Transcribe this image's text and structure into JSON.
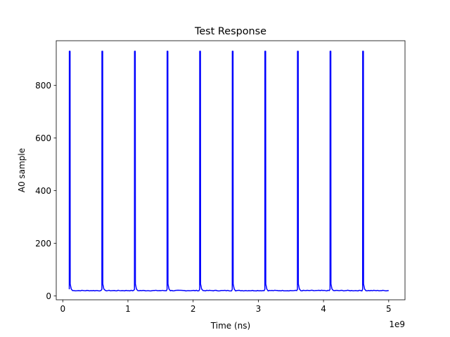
{
  "chart_data": {
    "type": "line",
    "title": "Test Response",
    "xlabel": "Time (ns)",
    "ylabel": "A0 sample",
    "x_offset_text": "1e9",
    "xlim": [
      -0.1,
      5.25
    ],
    "ylim": [
      -15,
      970
    ],
    "grid": false,
    "x_ticks": [
      0,
      1,
      2,
      3,
      4,
      5
    ],
    "x_tick_labels": [
      "0",
      "1",
      "2",
      "3",
      "4",
      "5"
    ],
    "y_ticks": [
      0,
      200,
      400,
      600,
      800
    ],
    "y_tick_labels": [
      "0",
      "200",
      "400",
      "600",
      "800"
    ],
    "series": [
      {
        "color": "#0000ff",
        "x_start": 0.1,
        "x_end": 5.0,
        "baseline": 20,
        "peak": 930,
        "pulse_x": [
          0.1,
          0.6,
          1.1,
          1.6,
          2.1,
          2.6,
          3.1,
          3.6,
          4.1,
          4.6
        ]
      }
    ]
  }
}
